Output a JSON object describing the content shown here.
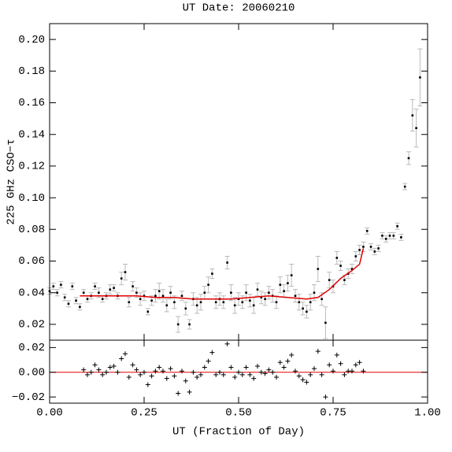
{
  "chart_data": [
    {
      "type": "scatter",
      "title": "UT Date: 20060210",
      "y_label": "225 GHz CSO−τ",
      "xlim": [
        0,
        1
      ],
      "xticks": [
        0,
        0.25,
        0.5,
        0.75,
        1
      ],
      "ylim": [
        0.01,
        0.21
      ],
      "yticks": [
        0.02,
        0.04,
        0.06,
        0.08,
        {
          "value": 0.1,
          "label": "0.10"
        },
        0.12,
        0.14,
        0.16,
        0.18,
        {
          "value": 0.2,
          "label": "0.20"
        }
      ],
      "series": [
        {
          "style": "points",
          "color": "#000000",
          "error_color": "#bbbbbb",
          "x": [
            0,
            0.01,
            0.02,
            0.03,
            0.04,
            0.05,
            0.06,
            0.07,
            0.08,
            0.09,
            0.1,
            0.11,
            0.12,
            0.13,
            0.14,
            0.15,
            0.16,
            0.17,
            0.18,
            0.19,
            0.2,
            0.21,
            0.22,
            0.23,
            0.24,
            0.25,
            0.26,
            0.27,
            0.28,
            0.29,
            0.3,
            0.31,
            0.32,
            0.33,
            0.34,
            0.35,
            0.36,
            0.37,
            0.38,
            0.39,
            0.4,
            0.41,
            0.42,
            0.43,
            0.44,
            0.45,
            0.46,
            0.47,
            0.48,
            0.49,
            0.5,
            0.51,
            0.52,
            0.53,
            0.54,
            0.55,
            0.56,
            0.57,
            0.58,
            0.59,
            0.6,
            0.61,
            0.62,
            0.63,
            0.64,
            0.65,
            0.66,
            0.67,
            0.68,
            0.69,
            0.7,
            0.71,
            0.72,
            0.73,
            0.74,
            0.75,
            0.76,
            0.77,
            0.78,
            0.79,
            0.8,
            0.81,
            0.82,
            0.83,
            0.84,
            0.85,
            0.86,
            0.87,
            0.88,
            0.89,
            0.9,
            0.91,
            0.92,
            0.93,
            0.94,
            0.95,
            0.96,
            0.97,
            0.98
          ],
          "values": [
            0.041,
            0.044,
            0.04,
            0.045,
            0.037,
            0.033,
            0.044,
            0.035,
            0.031,
            0.04,
            0.036,
            0.038,
            0.044,
            0.04,
            0.036,
            0.038,
            0.042,
            0.043,
            0.038,
            0.049,
            0.053,
            0.034,
            0.044,
            0.04,
            0.036,
            0.038,
            0.028,
            0.035,
            0.038,
            0.041,
            0.038,
            0.032,
            0.04,
            0.034,
            0.02,
            0.038,
            0.03,
            0.02,
            0.036,
            0.032,
            0.034,
            0.04,
            0.045,
            0.052,
            0.034,
            0.036,
            0.034,
            0.059,
            0.04,
            0.032,
            0.036,
            0.034,
            0.04,
            0.035,
            0.032,
            0.042,
            0.037,
            0.036,
            0.04,
            0.038,
            0.034,
            0.045,
            0.041,
            0.046,
            0.051,
            0.038,
            0.034,
            0.03,
            0.028,
            0.034,
            0.04,
            0.055,
            0.036,
            0.021,
            0.048,
            0.044,
            0.062,
            0.057,
            0.048,
            0.052,
            0.055,
            0.063,
            0.067,
            0.069,
            0.079,
            0.069,
            0.066,
            0.068,
            0.076,
            0.074,
            0.076,
            0.076,
            0.082,
            0.075,
            0.107,
            0.125,
            0.152,
            0.144,
            0.176
          ],
          "errors": [
            0.002,
            0.002,
            0.002,
            0.002,
            0.002,
            0.002,
            0.002,
            0.002,
            0.002,
            0.002,
            0.002,
            0.002,
            0.002,
            0.003,
            0.002,
            0.002,
            0.003,
            0.002,
            0.002,
            0.004,
            0.005,
            0.003,
            0.003,
            0.003,
            0.004,
            0.003,
            0.002,
            0.003,
            0.004,
            0.005,
            0.004,
            0.004,
            0.004,
            0.004,
            0.005,
            0.003,
            0.004,
            0.003,
            0.004,
            0.005,
            0.005,
            0.004,
            0.005,
            0.003,
            0.004,
            0.004,
            0.004,
            0.004,
            0.005,
            0.005,
            0.004,
            0.004,
            0.005,
            0.004,
            0.005,
            0.004,
            0.004,
            0.004,
            0.004,
            0.004,
            0.004,
            0.005,
            0.004,
            0.005,
            0.007,
            0.004,
            0.005,
            0.004,
            0.004,
            0.005,
            0.005,
            0.008,
            0.004,
            0.01,
            0.005,
            0.004,
            0.004,
            0.003,
            0.003,
            0.003,
            0.003,
            0.003,
            0.003,
            0.003,
            0.002,
            0.002,
            0.002,
            0.002,
            0.002,
            0.002,
            0.002,
            0.002,
            0.002,
            0.002,
            0.002,
            0.004,
            0.01,
            0.012,
            0.018
          ]
        },
        {
          "style": "line",
          "color": "#e00000",
          "x": [
            0.08,
            0.13,
            0.18,
            0.23,
            0.28,
            0.33,
            0.38,
            0.43,
            0.48,
            0.53,
            0.58,
            0.63,
            0.68,
            0.71,
            0.74,
            0.77,
            0.8,
            0.82,
            0.83
          ],
          "values": [
            0.038,
            0.038,
            0.038,
            0.038,
            0.037,
            0.037,
            0.036,
            0.036,
            0.036,
            0.037,
            0.038,
            0.037,
            0.036,
            0.037,
            0.042,
            0.049,
            0.054,
            0.058,
            0.068
          ]
        }
      ]
    },
    {
      "type": "scatter",
      "x_label": "UT (Fraction of Day)",
      "xlim": [
        0,
        1
      ],
      "xticks": [
        {
          "value": 0,
          "label": "0.00"
        },
        0.25,
        {
          "value": 0.5,
          "label": "0.50"
        },
        0.75,
        {
          "value": 1,
          "label": "1.00"
        }
      ],
      "ylim": [
        -0.025,
        0.026
      ],
      "yticks": [
        {
          "value": -0.02,
          "label": "−0.02"
        },
        {
          "value": 0,
          "label": "0.00"
        },
        0.02
      ],
      "reference_line": {
        "value": 0,
        "color": "#e00000"
      },
      "series": [
        {
          "style": "plus",
          "color": "#000000",
          "x": [
            0.09,
            0.1,
            0.11,
            0.12,
            0.13,
            0.14,
            0.15,
            0.16,
            0.17,
            0.18,
            0.19,
            0.2,
            0.21,
            0.22,
            0.23,
            0.24,
            0.25,
            0.26,
            0.27,
            0.28,
            0.29,
            0.3,
            0.31,
            0.32,
            0.33,
            0.34,
            0.35,
            0.36,
            0.37,
            0.38,
            0.39,
            0.4,
            0.41,
            0.42,
            0.43,
            0.44,
            0.45,
            0.46,
            0.47,
            0.48,
            0.49,
            0.5,
            0.51,
            0.52,
            0.53,
            0.54,
            0.55,
            0.56,
            0.57,
            0.58,
            0.59,
            0.6,
            0.61,
            0.62,
            0.63,
            0.64,
            0.65,
            0.66,
            0.67,
            0.68,
            0.69,
            0.7,
            0.71,
            0.72,
            0.73,
            0.74,
            0.75,
            0.76,
            0.77,
            0.78,
            0.79,
            0.8,
            0.81,
            0.82,
            0.83
          ],
          "values": [
            0.002,
            -0.002,
            0,
            0.006,
            0.002,
            -0.002,
            0,
            0.004,
            0.005,
            0,
            0.011,
            0.015,
            -0.004,
            0.006,
            0.002,
            -0.002,
            0,
            -0.01,
            -0.003,
            0.001,
            0.004,
            0.001,
            -0.005,
            0.003,
            -0.003,
            -0.017,
            0.001,
            -0.007,
            -0.016,
            0,
            -0.004,
            -0.002,
            0.004,
            0.009,
            0.016,
            -0.002,
            0,
            -0.002,
            0.023,
            0.004,
            -0.004,
            0,
            -0.002,
            0.004,
            -0.002,
            -0.005,
            0.005,
            0,
            -0.001,
            0.002,
            0,
            -0.004,
            0.008,
            0.004,
            0.009,
            0.014,
            0.001,
            -0.003,
            -0.006,
            -0.008,
            -0.002,
            0.003,
            0.017,
            -0.002,
            -0.02,
            0.006,
            0.001,
            0.014,
            0.007,
            -0.002,
            0.001,
            0.001,
            0.006,
            0.008,
            0.001
          ]
        }
      ]
    }
  ]
}
